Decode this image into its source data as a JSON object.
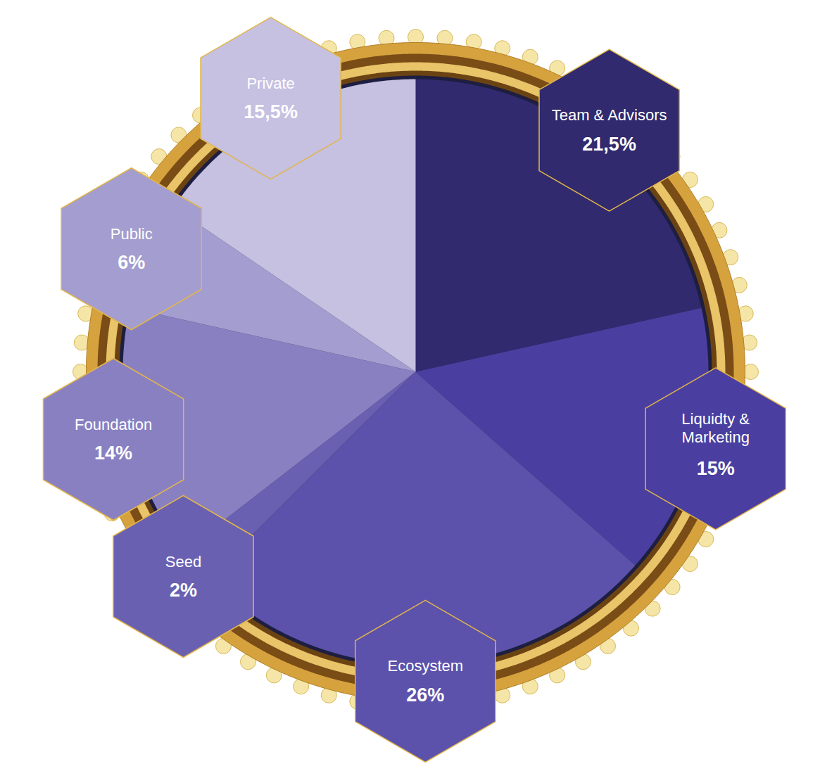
{
  "chart_data": {
    "type": "pie",
    "categories": [
      "Team & Advisors",
      "Liquidty & Marketing",
      "Ecosystem",
      "Seed",
      "Foundation",
      "Public",
      "Private"
    ],
    "values": [
      21.5,
      15,
      26,
      2,
      14,
      6,
      15.5
    ],
    "value_labels": [
      "21,5%",
      "15%",
      "26%",
      "2%",
      "14%",
      "6%",
      "15,5%"
    ],
    "colors": [
      "#312a6e",
      "#4a3fa0",
      "#5c52ab",
      "#6a60b1",
      "#8980c2",
      "#a49dcf",
      "#c6c0e1"
    ],
    "data_labels": true
  }
}
